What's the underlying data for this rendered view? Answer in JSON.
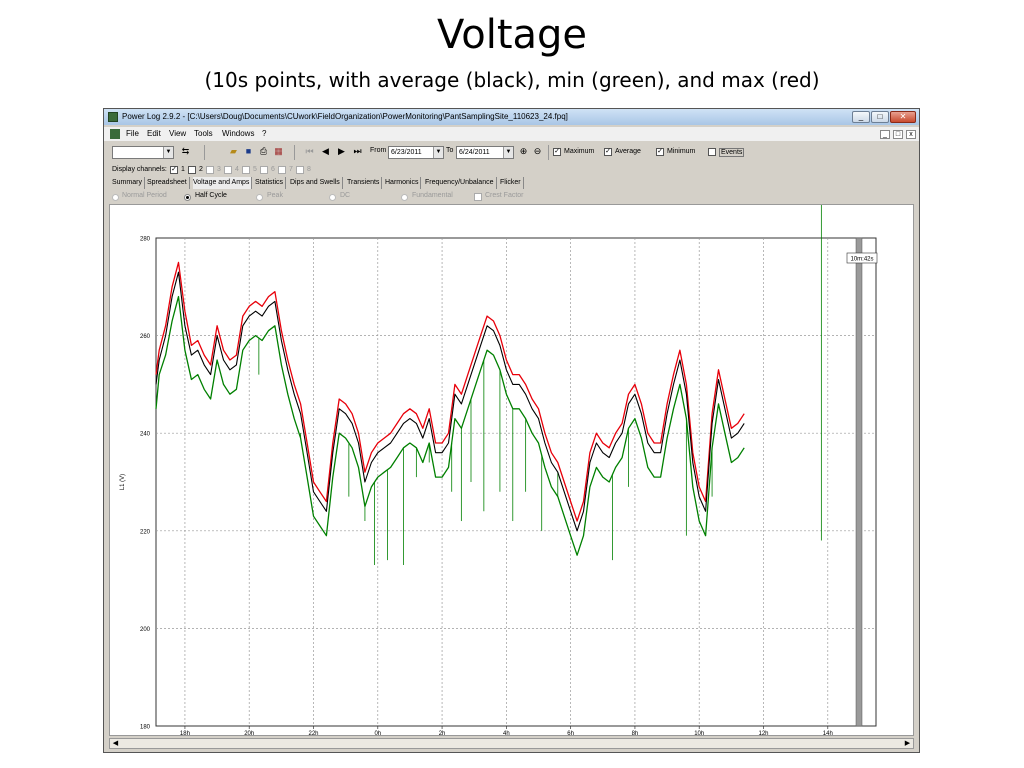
{
  "slide": {
    "title": "Voltage",
    "subtitle": "(10s points, with average (black), min (green), and max (red)"
  },
  "window": {
    "title": "Power Log 2.9.2 - [C:\\Users\\Doug\\Documents\\CUwork\\FieldOrganization\\PowerMonitoring\\PantSamplingSite_110623_24.fpq]",
    "app_icon": "power-log-icon",
    "controls": [
      "minimize-icon",
      "restore-icon",
      "close-icon"
    ]
  },
  "menu": {
    "items": [
      "File",
      "Edit",
      "View",
      "Tools",
      "Windows",
      "?"
    ]
  },
  "toolbar": {
    "channel_combo_value": "",
    "from_label": "From",
    "from_date": "6/23/2011",
    "to_label": "To",
    "to_date": "6/24/2011",
    "maximum_label": "Maximum",
    "average_label": "Average",
    "minimum_label": "Minimum",
    "events_label": "Events"
  },
  "display_channels": {
    "label": "Display channels:",
    "channels": [
      "1",
      "2",
      "3",
      "4",
      "5",
      "6",
      "7",
      "8"
    ]
  },
  "tabs": [
    "Summary",
    "Spreadsheet",
    "Voltage and Amps",
    "Statistics",
    "Dips and Swells",
    "Transients",
    "Harmonics",
    "Frequency/Unbalance",
    "Flicker"
  ],
  "active_tab": "Voltage and Amps",
  "modes": {
    "normal_period": "Normal Period",
    "half_cycle": "Half Cycle",
    "peak": "Peak",
    "dc": "DC",
    "fundamental": "Fundamental",
    "crest_factor": "Crest Factor",
    "selected": "Half Cycle"
  },
  "cursor_label": "10m:42s",
  "colors": {
    "max": "#e8000a",
    "avg": "#000000",
    "min": "#008000",
    "grid": "#9a9a9a"
  },
  "chart_data": {
    "type": "line",
    "ylabel": "L1 (V)",
    "ylim": [
      180,
      280
    ],
    "yticks": [
      180,
      200,
      220,
      240,
      260,
      280
    ],
    "xticks": [
      "18h",
      "20h",
      "22h",
      "0h",
      "2h",
      "4h",
      "6h",
      "8h",
      "10h",
      "12h",
      "14h"
    ],
    "x_hours_from_18h": [
      -0.9,
      -0.8,
      -0.6,
      -0.4,
      -0.2,
      0,
      0.2,
      0.4,
      0.6,
      0.8,
      1,
      1.2,
      1.4,
      1.6,
      1.8,
      2,
      2.2,
      2.4,
      2.6,
      2.8,
      3,
      3.2,
      3.4,
      3.6,
      3.8,
      4,
      4.2,
      4.4,
      4.6,
      4.8,
      5,
      5.2,
      5.4,
      5.6,
      5.8,
      6,
      6.2,
      6.4,
      6.6,
      6.8,
      7,
      7.2,
      7.4,
      7.6,
      7.8,
      8,
      8.2,
      8.4,
      8.6,
      8.8,
      9,
      9.2,
      9.4,
      9.6,
      9.8,
      10,
      10.2,
      10.4,
      10.6,
      10.8,
      11,
      11.2,
      11.4,
      11.6,
      11.8,
      12,
      12.2,
      12.4,
      12.6,
      12.8,
      13,
      13.2,
      13.4,
      13.6,
      13.8,
      14,
      14.2,
      14.4,
      14.6,
      14.8,
      15,
      15.2,
      15.4,
      15.6,
      15.8,
      16,
      16.2,
      16.4,
      16.6,
      16.8,
      17,
      17.2,
      17.4,
      17.6,
      17.8,
      18,
      18.2,
      18.4,
      18.6,
      18.8,
      19,
      19.2,
      19.4,
      19.6,
      19.8,
      20,
      20.2,
      20.4,
      20.6,
      20.8,
      21,
      21.2,
      21.4,
      21.5
    ],
    "series": [
      {
        "name": "Maximum",
        "values": [
          252,
          257,
          262,
          270,
          275,
          265,
          258,
          259,
          256,
          254,
          262,
          257,
          255,
          256,
          264,
          266,
          267,
          266,
          268,
          269,
          261,
          255,
          250,
          246,
          238,
          230,
          228,
          226,
          238,
          247,
          246,
          244,
          240,
          232,
          236,
          238,
          239,
          240,
          242,
          244,
          245,
          244,
          241,
          245,
          238,
          238,
          240,
          250,
          248,
          252,
          256,
          260,
          264,
          263,
          260,
          255,
          252,
          252,
          250,
          247,
          245,
          240,
          236,
          234,
          230,
          226,
          222,
          226,
          236,
          240,
          238,
          237,
          240,
          242,
          248,
          250,
          246,
          240,
          238,
          238,
          246,
          252,
          257,
          250,
          236,
          229,
          226,
          244,
          253,
          247,
          241,
          242,
          244
        ]
      },
      {
        "name": "Average",
        "values": [
          250,
          255,
          260,
          268,
          273,
          262,
          256,
          257,
          254,
          252,
          260,
          255,
          253,
          254,
          262,
          264,
          265,
          264,
          266,
          267,
          259,
          253,
          248,
          244,
          236,
          228,
          226,
          224,
          236,
          245,
          244,
          242,
          238,
          230,
          234,
          236,
          237,
          238,
          240,
          242,
          243,
          242,
          239,
          243,
          236,
          236,
          238,
          248,
          246,
          250,
          254,
          258,
          262,
          261,
          258,
          253,
          250,
          250,
          248,
          245,
          243,
          238,
          234,
          232,
          228,
          224,
          220,
          224,
          234,
          238,
          236,
          235,
          238,
          240,
          246,
          248,
          244,
          238,
          236,
          236,
          244,
          250,
          255,
          248,
          234,
          227,
          224,
          242,
          251,
          245,
          239,
          240,
          242
        ]
      },
      {
        "name": "Minimum",
        "values": [
          245,
          252,
          256,
          263,
          268,
          257,
          251,
          252,
          249,
          247,
          255,
          250,
          248,
          249,
          257,
          259,
          260,
          259,
          261,
          262,
          254,
          248,
          243,
          239,
          231,
          223,
          221,
          219,
          231,
          240,
          239,
          237,
          233,
          225,
          229,
          231,
          232,
          233,
          235,
          237,
          238,
          237,
          234,
          238,
          231,
          231,
          233,
          243,
          241,
          245,
          249,
          253,
          257,
          256,
          253,
          248,
          245,
          245,
          243,
          240,
          238,
          233,
          229,
          227,
          223,
          219,
          215,
          219,
          229,
          233,
          231,
          230,
          233,
          235,
          241,
          243,
          239,
          233,
          231,
          231,
          239,
          245,
          250,
          243,
          229,
          222,
          219,
          237,
          246,
          240,
          234,
          235,
          237
        ]
      }
    ],
    "min_spikes": [
      [
        2.3,
        252
      ],
      [
        3.6,
        240
      ],
      [
        5.1,
        227
      ],
      [
        5.6,
        222
      ],
      [
        5.9,
        213
      ],
      [
        6.3,
        214
      ],
      [
        6.8,
        213
      ],
      [
        7.2,
        231
      ],
      [
        7.6,
        234
      ],
      [
        8.3,
        228
      ],
      [
        8.6,
        222
      ],
      [
        8.9,
        230
      ],
      [
        9.3,
        224
      ],
      [
        9.8,
        228
      ],
      [
        10.2,
        222
      ],
      [
        10.6,
        228
      ],
      [
        11.1,
        220
      ],
      [
        11.6,
        232
      ],
      [
        13.3,
        214
      ],
      [
        13.8,
        229
      ],
      [
        15.6,
        219
      ],
      [
        16.4,
        227
      ],
      [
        19.8,
        218
      ]
    ],
    "legend": "none",
    "grid": true
  }
}
